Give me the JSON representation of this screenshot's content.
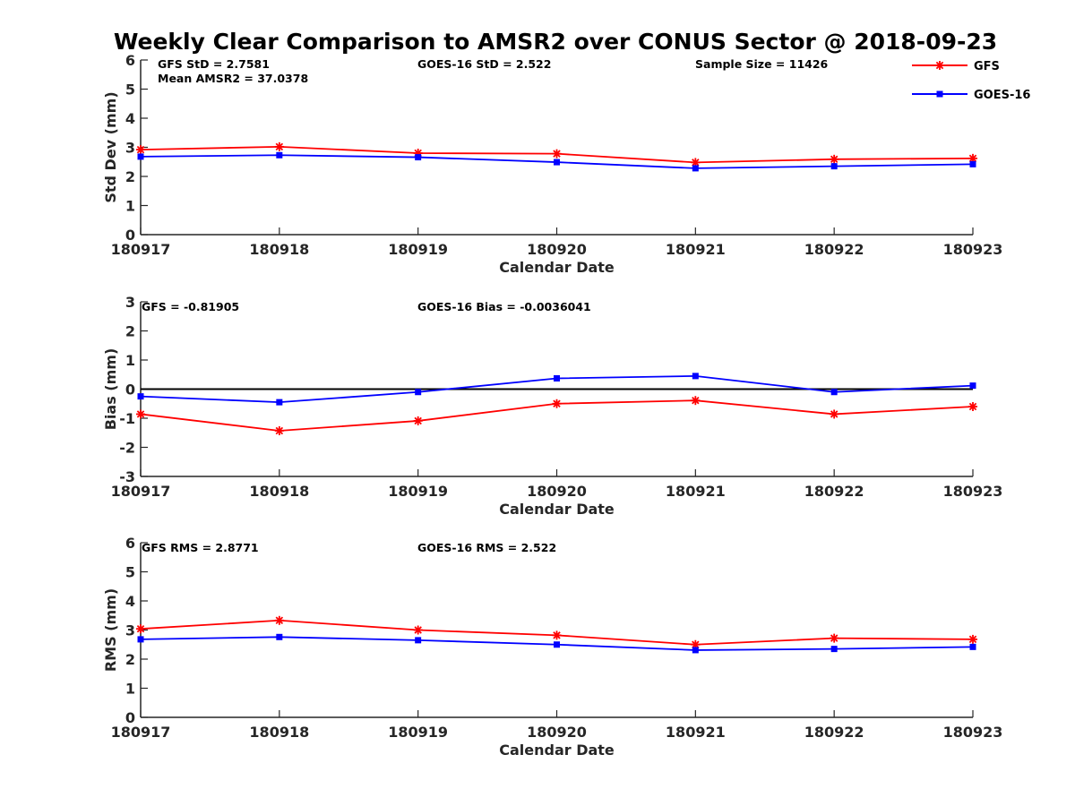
{
  "title": "Weekly Clear Comparison to AMSR2 over CONUS Sector @ 2018-09-23",
  "legend": [
    {
      "name": "GFS",
      "color": "#ff0000",
      "marker": "asterisk-icon"
    },
    {
      "name": "GOES-16",
      "color": "#0000ff",
      "marker": "square-icon"
    }
  ],
  "chart_data": [
    {
      "type": "line",
      "categories": [
        "180917",
        "180918",
        "180919",
        "180920",
        "180921",
        "180922",
        "180923"
      ],
      "xlabel": "Calendar Date",
      "ylabel": "Std Dev (mm)",
      "ylim": [
        0,
        6
      ],
      "yticks": [
        "0",
        "1",
        "2",
        "3",
        "4",
        "5",
        "6"
      ],
      "annotations": [
        "GFS StD = 2.7581",
        "Mean AMSR2 = 37.0378",
        "GOES-16 StD = 2.522",
        "Sample Size = 11426"
      ],
      "series": [
        {
          "name": "GFS",
          "color": "#ff0000",
          "values": [
            2.92,
            3.02,
            2.8,
            2.78,
            2.48,
            2.59,
            2.62
          ]
        },
        {
          "name": "GOES-16",
          "color": "#0000ff",
          "values": [
            2.68,
            2.73,
            2.66,
            2.49,
            2.28,
            2.35,
            2.42
          ]
        }
      ]
    },
    {
      "type": "line",
      "categories": [
        "180917",
        "180918",
        "180919",
        "180920",
        "180921",
        "180922",
        "180923"
      ],
      "xlabel": "Calendar Date",
      "ylabel": "Bias (mm)",
      "ylim": [
        -3,
        3
      ],
      "yticks": [
        "-3",
        "-2",
        "-1",
        "0",
        "1",
        "2",
        "3"
      ],
      "zero_line": true,
      "annotations": [
        "GFS = -0.81905",
        "GOES-16 Bias  = -0.0036041"
      ],
      "series": [
        {
          "name": "GFS",
          "color": "#ff0000",
          "values": [
            -0.86,
            -1.43,
            -1.09,
            -0.5,
            -0.39,
            -0.86,
            -0.6
          ]
        },
        {
          "name": "GOES-16",
          "color": "#0000ff",
          "values": [
            -0.25,
            -0.45,
            -0.1,
            0.37,
            0.45,
            -0.1,
            0.12
          ]
        }
      ]
    },
    {
      "type": "line",
      "categories": [
        "180917",
        "180918",
        "180919",
        "180920",
        "180921",
        "180922",
        "180923"
      ],
      "xlabel": "Calendar Date",
      "ylabel": "RMS (mm)",
      "ylim": [
        0,
        6
      ],
      "yticks": [
        "0",
        "1",
        "2",
        "3",
        "4",
        "5",
        "6"
      ],
      "annotations": [
        "GFS RMS = 2.8771",
        "GOES-16 RMS = 2.522"
      ],
      "series": [
        {
          "name": "GFS",
          "color": "#ff0000",
          "values": [
            3.04,
            3.33,
            3.0,
            2.82,
            2.5,
            2.72,
            2.68
          ]
        },
        {
          "name": "GOES-16",
          "color": "#0000ff",
          "values": [
            2.68,
            2.76,
            2.65,
            2.5,
            2.31,
            2.35,
            2.42
          ]
        }
      ]
    }
  ]
}
